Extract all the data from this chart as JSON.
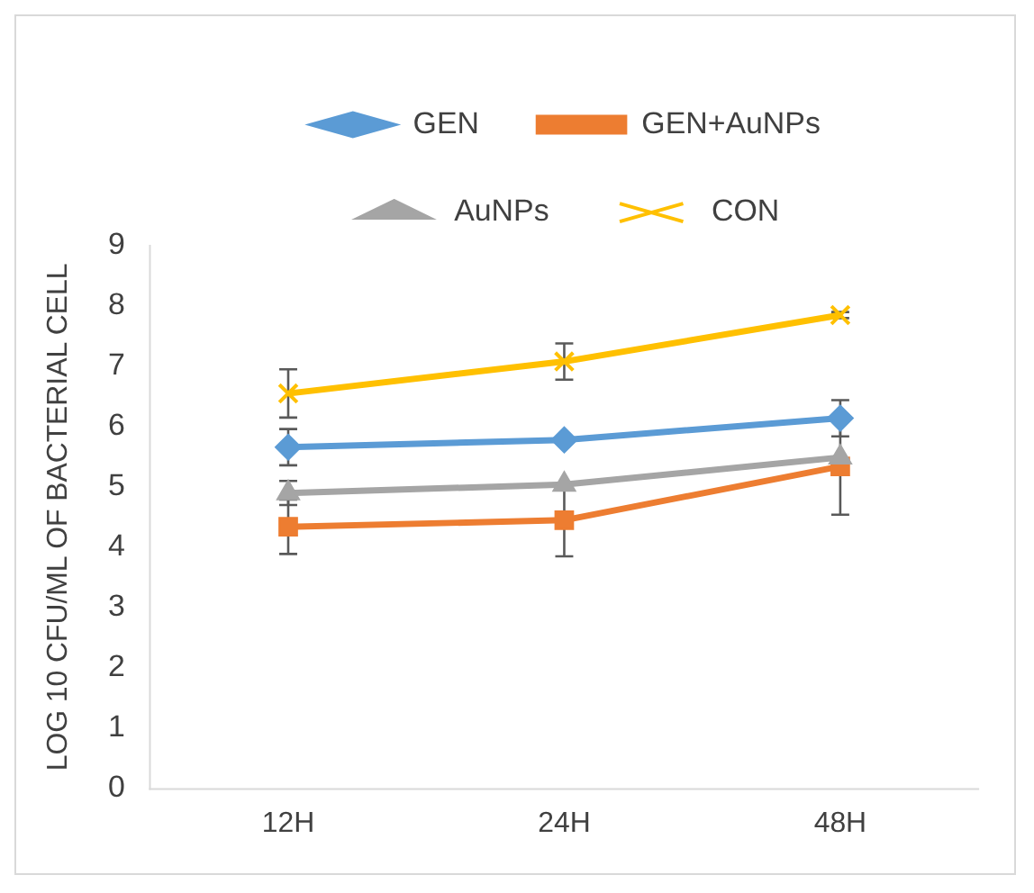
{
  "chart_data": {
    "type": "line",
    "ylabel": "LOG 10 CFU/ML OF BACTERIAL CELL",
    "categories": [
      "12H",
      "24H",
      "48H"
    ],
    "ylim": [
      0,
      9
    ],
    "yticks": [
      0,
      1,
      2,
      3,
      4,
      5,
      6,
      7,
      8,
      9
    ],
    "grid": false,
    "legend": "top",
    "series": [
      {
        "name": "GEN",
        "color": "#5b9bd5",
        "marker": "diamond",
        "values": [
          5.66,
          5.78,
          6.14
        ],
        "errors": [
          0.3,
          null,
          0.3
        ]
      },
      {
        "name": "GEN+AuNPs",
        "color": "#ed7d31",
        "marker": "square",
        "values": [
          4.34,
          4.45,
          5.34
        ],
        "errors": [
          0.45,
          0.6,
          0.8
        ]
      },
      {
        "name": "AuNPs",
        "color": "#a5a5a5",
        "marker": "triangle",
        "values": [
          4.9,
          5.04,
          5.49
        ],
        "errors": [
          0.2,
          null,
          null
        ]
      },
      {
        "name": "CON",
        "color": "#ffc000",
        "marker": "cross",
        "values": [
          6.55,
          7.08,
          7.85
        ],
        "errors": [
          0.4,
          0.3,
          0.05
        ]
      }
    ]
  }
}
